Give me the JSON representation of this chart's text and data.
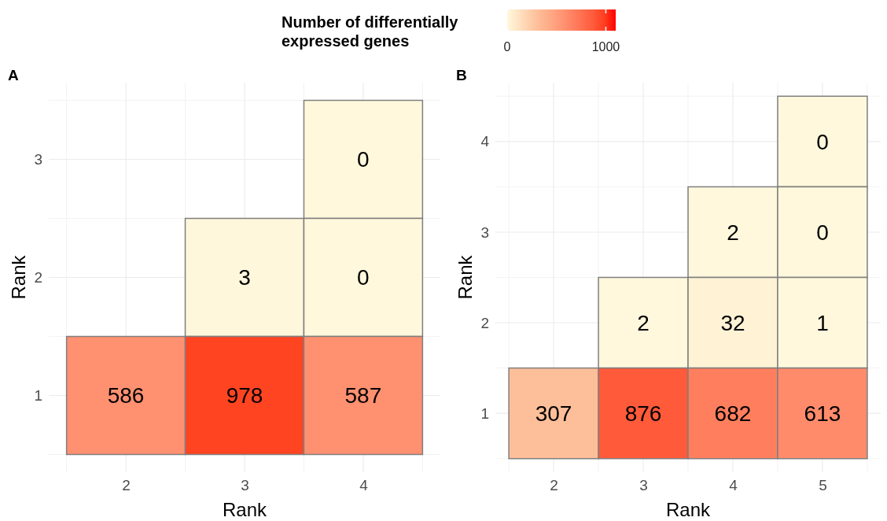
{
  "chart_data": [
    {
      "type": "heatmap",
      "title": "A",
      "xlabel": "Rank",
      "ylabel": "Rank",
      "clabel": "Number of differentially expressed genes",
      "categories": [
        "2",
        "3",
        "4"
      ],
      "y_categories": [
        "3",
        "2",
        "1"
      ],
      "cells": [
        [
          null,
          null,
          0
        ],
        [
          null,
          3,
          0
        ],
        [
          586,
          978,
          587
        ]
      ],
      "clim": [
        0,
        1100
      ],
      "cticks": [
        0,
        1000
      ],
      "data_labels": true,
      "grid": true
    },
    {
      "type": "heatmap",
      "title": "B",
      "xlabel": "Rank",
      "ylabel": "Rank",
      "categories": [
        "2",
        "3",
        "4",
        "5"
      ],
      "y_categories": [
        "4",
        "3",
        "2",
        "1"
      ],
      "cells": [
        [
          null,
          null,
          null,
          0
        ],
        [
          null,
          null,
          2,
          0
        ],
        [
          null,
          2,
          32,
          1
        ],
        [
          307,
          876,
          682,
          613
        ]
      ],
      "data_labels": true,
      "grid": true
    }
  ]
}
